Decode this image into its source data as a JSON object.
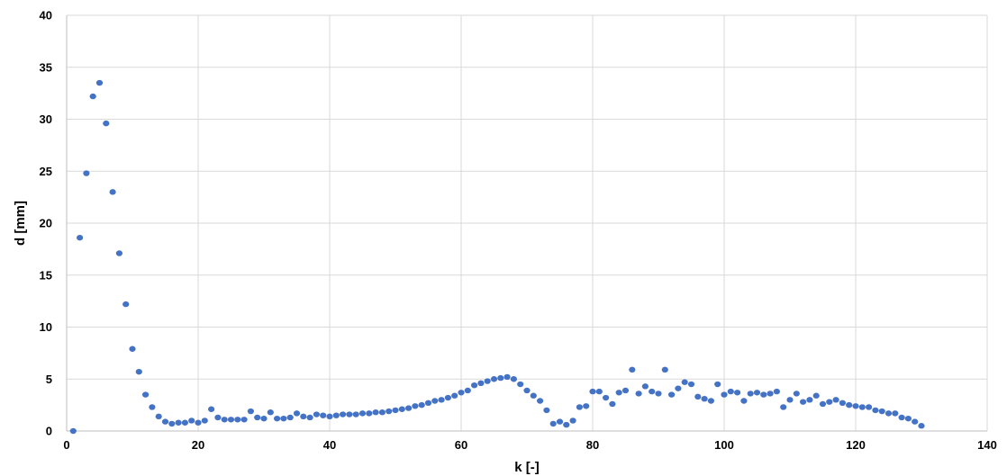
{
  "chart_data": {
    "type": "scatter",
    "xlabel": "k [-]",
    "ylabel": "d [mm]",
    "xlim": [
      0,
      140
    ],
    "ylim": [
      0,
      40
    ],
    "x_ticks": [
      0,
      20,
      40,
      60,
      80,
      100,
      120,
      140
    ],
    "y_ticks": [
      0,
      5,
      10,
      15,
      20,
      25,
      30,
      35,
      40
    ],
    "x_tick_labels": [
      "0",
      "20",
      "40",
      "60",
      "80",
      "100",
      "120",
      "140"
    ],
    "y_tick_labels": [
      "0",
      "5",
      "10",
      "15",
      "20",
      "25",
      "30",
      "35",
      "40"
    ],
    "grid": true,
    "marker_color": "#4472C4",
    "series": [
      {
        "x": [
          1,
          2,
          3,
          4,
          5,
          6,
          7,
          8,
          9,
          10,
          11,
          12,
          13,
          14,
          15,
          16,
          17,
          18,
          19,
          20,
          21,
          22,
          23,
          24,
          25,
          26,
          27,
          28,
          29,
          30,
          31,
          32,
          33,
          34,
          35,
          36,
          37,
          38,
          39,
          40,
          41,
          42,
          43,
          44,
          45,
          46,
          47,
          48,
          49,
          50,
          51,
          52,
          53,
          54,
          55,
          56,
          57,
          58,
          59,
          60,
          61,
          62,
          63,
          64,
          65,
          66,
          67,
          68,
          69,
          70,
          71,
          72,
          73,
          74,
          75,
          76,
          77,
          78,
          79,
          80,
          81,
          82,
          83,
          84,
          85,
          86,
          87,
          88,
          89,
          90,
          91,
          92,
          93,
          94,
          95,
          96,
          97,
          98,
          99,
          100,
          101,
          102,
          103,
          104,
          105,
          106,
          107,
          108,
          109,
          110,
          111,
          112,
          113,
          114,
          115,
          116,
          117,
          118,
          119,
          120,
          121,
          122,
          123,
          124,
          125,
          126,
          127,
          128,
          129,
          130
        ],
        "y": [
          0.0,
          18.6,
          24.8,
          32.2,
          33.5,
          29.6,
          23.0,
          17.1,
          12.2,
          7.9,
          5.7,
          3.5,
          2.3,
          1.4,
          0.9,
          0.7,
          0.8,
          0.8,
          1.0,
          0.8,
          1.0,
          2.1,
          1.3,
          1.1,
          1.1,
          1.1,
          1.1,
          1.9,
          1.3,
          1.2,
          1.8,
          1.2,
          1.2,
          1.3,
          1.7,
          1.4,
          1.3,
          1.6,
          1.5,
          1.4,
          1.5,
          1.6,
          1.6,
          1.6,
          1.7,
          1.7,
          1.8,
          1.8,
          1.9,
          2.0,
          2.1,
          2.2,
          2.4,
          2.5,
          2.7,
          2.9,
          3.0,
          3.2,
          3.4,
          3.7,
          3.9,
          4.4,
          4.6,
          4.8,
          5.0,
          5.1,
          5.2,
          5.0,
          4.5,
          3.9,
          3.4,
          2.9,
          2.0,
          0.7,
          0.9,
          0.6,
          1.0,
          2.3,
          2.4,
          3.8,
          3.8,
          3.2,
          2.6,
          3.7,
          3.9,
          5.9,
          3.6,
          4.3,
          3.8,
          3.6,
          5.9,
          3.5,
          4.1,
          4.7,
          4.5,
          3.3,
          3.1,
          2.9,
          4.5,
          3.5,
          3.8,
          3.7,
          2.9,
          3.6,
          3.7,
          3.5,
          3.6,
          3.8,
          2.3,
          3.0,
          3.6,
          2.8,
          3.0,
          3.4,
          2.6,
          2.8,
          3.0,
          2.7,
          2.5,
          2.4,
          2.3,
          2.3,
          2.0,
          1.9,
          1.7,
          1.7,
          1.3,
          1.2,
          0.9,
          0.5
        ]
      }
    ]
  }
}
